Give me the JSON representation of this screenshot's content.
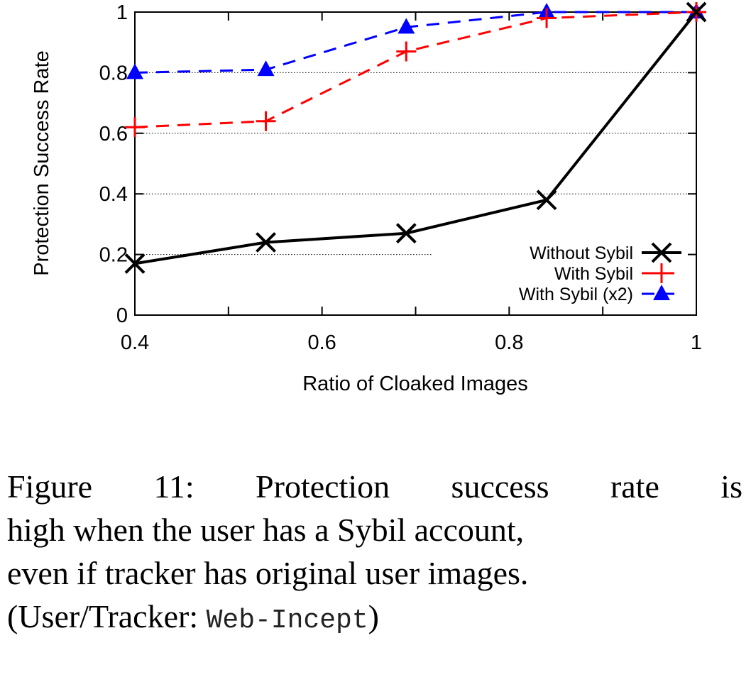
{
  "chart_data": {
    "type": "line",
    "xlabel": "Ratio of Cloaked Images",
    "ylabel": "Protection Success Rate",
    "xlim": [
      0.4,
      1.0
    ],
    "ylim": [
      0,
      1.0
    ],
    "xticks": [
      0.4,
      0.6,
      0.8,
      1.0
    ],
    "xtick_labels": [
      "0.4",
      "0.6",
      "0.8",
      "1"
    ],
    "yticks": [
      0,
      0.2,
      0.4,
      0.6,
      0.8,
      1.0
    ],
    "ytick_labels": [
      "0",
      "0.2",
      "0.4",
      "0.6",
      "0.8",
      "1"
    ],
    "grid": "horizontal dotted",
    "legend_position": "bottom-right",
    "series": [
      {
        "name": "Without Sybil",
        "color": "#000000",
        "dash": "solid",
        "marker": "x",
        "x": [
          0.4,
          0.54,
          0.69,
          0.84,
          1.0
        ],
        "y": [
          0.17,
          0.24,
          0.27,
          0.38,
          1.0
        ]
      },
      {
        "name": "With Sybil",
        "color": "#ff0000",
        "dash": "dashed",
        "marker": "plus",
        "x": [
          0.4,
          0.54,
          0.69,
          0.84,
          1.0
        ],
        "y": [
          0.62,
          0.64,
          0.87,
          0.98,
          1.0
        ]
      },
      {
        "name": "With Sybil (x2)",
        "color": "#0000ff",
        "dash": "dashed",
        "marker": "triangle",
        "x": [
          0.4,
          0.54,
          0.69,
          0.84,
          1.0
        ],
        "y": [
          0.8,
          0.81,
          0.95,
          1.0,
          1.0
        ]
      }
    ]
  },
  "caption": {
    "line1": "Figure 11: Protection success rate is",
    "line2": "high when the user has a Sybil account,",
    "line3": "even if tracker has original user images.",
    "line4_prefix": "(User/Tracker: ",
    "line4_code": "Web-Incept",
    "line4_suffix": ")"
  }
}
